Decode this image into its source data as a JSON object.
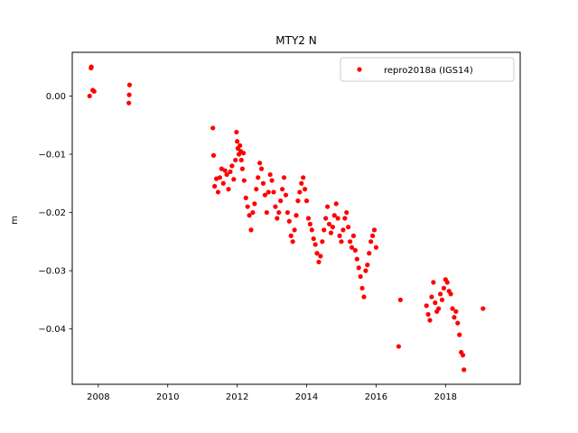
{
  "chart_data": {
    "type": "scatter",
    "title": "MTY2 N",
    "xlabel": "",
    "ylabel": "m",
    "xlim": [
      2007.25,
      2020.15
    ],
    "ylim": [
      -0.0495,
      0.0075
    ],
    "x_ticks": [
      2008,
      2010,
      2012,
      2014,
      2016,
      2018
    ],
    "x_tick_labels": [
      "2008",
      "2010",
      "2012",
      "2014",
      "2016",
      "2018"
    ],
    "y_ticks": [
      0.0,
      -0.01,
      -0.02,
      -0.03,
      -0.04
    ],
    "y_tick_labels": [
      "0.00",
      "−0.01",
      "−0.02",
      "−0.03",
      "−0.04"
    ],
    "grid": false,
    "legend_position": "top-right",
    "series": [
      {
        "name": "repro2018a (IGS14)",
        "color": "#ff0000",
        "marker": "circle",
        "x": [
          2007.75,
          2007.79,
          2007.8,
          2007.84,
          2007.88,
          2008.88,
          2008.89,
          2008.9,
          2011.3,
          2011.32,
          2011.35,
          2011.4,
          2011.45,
          2011.5,
          2011.55,
          2011.6,
          2011.65,
          2011.7,
          2011.75,
          2011.8,
          2011.85,
          2011.9,
          2011.95,
          2011.98,
          2012.0,
          2012.02,
          2012.05,
          2012.08,
          2012.1,
          2012.12,
          2012.15,
          2012.18,
          2012.2,
          2012.25,
          2012.3,
          2012.35,
          2012.4,
          2012.45,
          2012.5,
          2012.55,
          2012.6,
          2012.65,
          2012.7,
          2012.75,
          2012.8,
          2012.85,
          2012.9,
          2012.95,
          2013.0,
          2013.05,
          2013.1,
          2013.15,
          2013.2,
          2013.25,
          2013.3,
          2013.35,
          2013.4,
          2013.45,
          2013.5,
          2013.55,
          2013.6,
          2013.65,
          2013.7,
          2013.75,
          2013.8,
          2013.85,
          2013.9,
          2013.95,
          2014.0,
          2014.05,
          2014.1,
          2014.15,
          2014.2,
          2014.25,
          2014.3,
          2014.35,
          2014.4,
          2014.45,
          2014.5,
          2014.55,
          2014.6,
          2014.65,
          2014.7,
          2014.75,
          2014.8,
          2014.85,
          2014.9,
          2014.95,
          2015.0,
          2015.05,
          2015.1,
          2015.15,
          2015.2,
          2015.25,
          2015.3,
          2015.35,
          2015.4,
          2015.45,
          2015.5,
          2015.55,
          2015.6,
          2015.65,
          2015.7,
          2015.75,
          2015.8,
          2015.85,
          2015.9,
          2015.95,
          2016.0,
          2016.65,
          2016.7,
          2017.45,
          2017.5,
          2017.55,
          2017.6,
          2017.65,
          2017.7,
          2017.75,
          2017.8,
          2017.85,
          2017.9,
          2017.95,
          2018.0,
          2018.05,
          2018.1,
          2018.15,
          2018.2,
          2018.25,
          2018.3,
          2018.35,
          2018.4,
          2018.45,
          2018.5,
          2018.53,
          2019.08
        ],
        "y": [
          0.0,
          0.0048,
          0.005,
          0.001,
          0.0008,
          -0.0012,
          0.0002,
          0.0019,
          -0.0055,
          -0.0102,
          -0.0155,
          -0.0142,
          -0.0165,
          -0.014,
          -0.0125,
          -0.015,
          -0.0128,
          -0.0135,
          -0.016,
          -0.013,
          -0.012,
          -0.0143,
          -0.011,
          -0.0062,
          -0.0078,
          -0.009,
          -0.01,
          -0.0085,
          -0.0095,
          -0.011,
          -0.0125,
          -0.0098,
          -0.0145,
          -0.0175,
          -0.019,
          -0.0205,
          -0.023,
          -0.02,
          -0.0185,
          -0.016,
          -0.014,
          -0.0115,
          -0.0125,
          -0.015,
          -0.017,
          -0.02,
          -0.0165,
          -0.0135,
          -0.0145,
          -0.0165,
          -0.019,
          -0.021,
          -0.02,
          -0.018,
          -0.016,
          -0.014,
          -0.017,
          -0.02,
          -0.0215,
          -0.024,
          -0.025,
          -0.023,
          -0.0205,
          -0.018,
          -0.0165,
          -0.015,
          -0.014,
          -0.016,
          -0.018,
          -0.021,
          -0.022,
          -0.023,
          -0.0245,
          -0.0255,
          -0.027,
          -0.0285,
          -0.0275,
          -0.025,
          -0.023,
          -0.021,
          -0.019,
          -0.022,
          -0.0235,
          -0.0225,
          -0.0205,
          -0.0185,
          -0.021,
          -0.024,
          -0.025,
          -0.023,
          -0.021,
          -0.02,
          -0.0225,
          -0.025,
          -0.026,
          -0.024,
          -0.0265,
          -0.028,
          -0.0295,
          -0.031,
          -0.033,
          -0.0345,
          -0.03,
          -0.029,
          -0.027,
          -0.025,
          -0.024,
          -0.023,
          -0.026,
          -0.043,
          -0.035,
          -0.036,
          -0.0375,
          -0.0385,
          -0.0345,
          -0.032,
          -0.0355,
          -0.037,
          -0.0365,
          -0.034,
          -0.035,
          -0.033,
          -0.0315,
          -0.032,
          -0.0335,
          -0.034,
          -0.0365,
          -0.038,
          -0.037,
          -0.039,
          -0.041,
          -0.044,
          -0.0445,
          -0.047,
          -0.0365
        ]
      }
    ]
  }
}
